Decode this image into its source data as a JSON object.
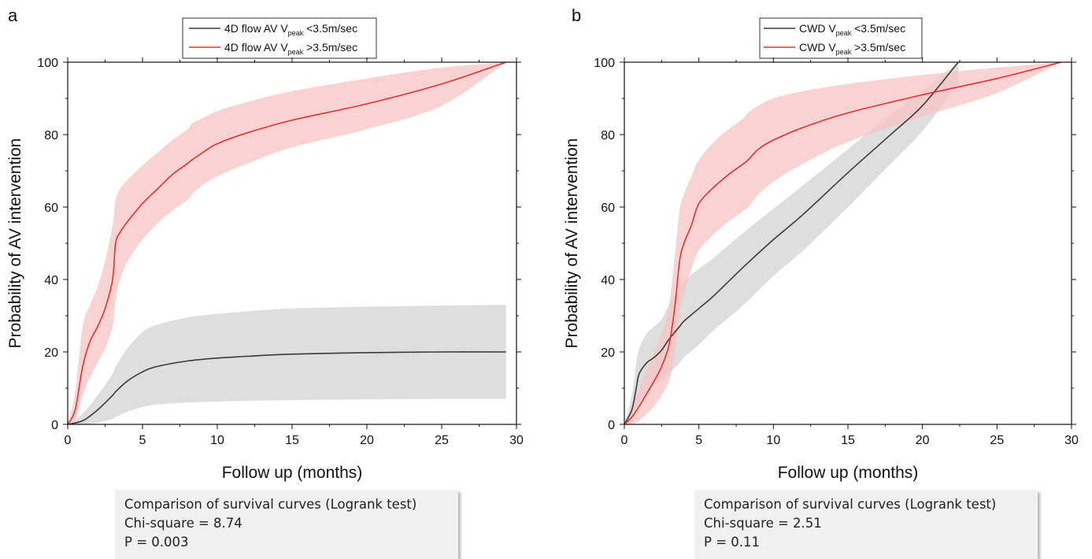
{
  "charts": [
    {
      "panel_label": "a",
      "legend": [
        {
          "prefix": "4D flow AV V",
          "sub": "peak",
          "suffix": " <3.5m/sec",
          "color": "#3a3a3a"
        },
        {
          "prefix": "4D flow AV V",
          "sub": "peak",
          "suffix": " >3.5m/sec",
          "color": "#e8302e"
        }
      ],
      "stats": {
        "title": "Comparison of survival curves (Logrank test)",
        "chi": "Chi-square = 8.74",
        "p": "P = 0.003"
      }
    },
    {
      "panel_label": "b",
      "legend": [
        {
          "prefix": "CWD V",
          "sub": "peak",
          "suffix": " <3.5m/sec",
          "color": "#3a3a3a"
        },
        {
          "prefix": "CWD V",
          "sub": "peak",
          "suffix": " >3.5m/sec",
          "color": "#e8302e"
        }
      ],
      "stats": {
        "title": "Comparison of survival curves (Logrank test)",
        "chi": "Chi-square = 2.51",
        "p": "P = 0.11"
      }
    }
  ],
  "chart_data": [
    {
      "type": "line",
      "xlabel": "Follow up (months)",
      "ylabel": "Probability of AV intervention",
      "xlim": [
        0,
        30
      ],
      "ylim": [
        0,
        100
      ],
      "xticks": [
        0,
        5,
        10,
        15,
        20,
        25,
        30
      ],
      "yticks": [
        0,
        20,
        40,
        60,
        80,
        100
      ],
      "grid": false,
      "legend_position": "top-center",
      "series": [
        {
          "name": "4D flow AV Vpeak <3.5m/sec",
          "color": "#3a3a3a",
          "band_color": "#d3d3d3",
          "x": [
            0,
            1,
            2,
            3,
            3.2,
            4,
            5,
            6,
            8,
            10,
            12,
            15,
            20,
            25,
            29.3
          ],
          "y": [
            0,
            1,
            4,
            8,
            9,
            12,
            14.5,
            16,
            17.5,
            18.3,
            18.8,
            19.4,
            19.8,
            20,
            20
          ],
          "lower": [
            0,
            0,
            0.5,
            1.5,
            2,
            3.5,
            4.8,
            5.5,
            6,
            6.3,
            6.5,
            6.7,
            6.9,
            7,
            7
          ],
          "upper": [
            0,
            3,
            8,
            14,
            16,
            21,
            25.5,
            27.5,
            29.5,
            30.5,
            31.2,
            32,
            32.5,
            32.8,
            33
          ]
        },
        {
          "name": "4D flow AV Vpeak >3.5m/sec",
          "color": "#e8302e",
          "band_color": "#f7c4c3",
          "x": [
            0,
            0.5,
            1,
            1.5,
            2,
            2.5,
            3,
            3.2,
            3.5,
            4,
            5,
            6,
            7,
            8,
            8.3,
            9,
            10,
            12,
            15,
            20,
            25,
            29.3
          ],
          "y": [
            0,
            4,
            16,
            23,
            27,
            32,
            40,
            50,
            53,
            56,
            61,
            65,
            69,
            72,
            73,
            75,
            77.5,
            80.5,
            84,
            88.5,
            94,
            100
          ],
          "lower": [
            0,
            1,
            8,
            13,
            17,
            21,
            27,
            34,
            40,
            45,
            51,
            55.5,
            59,
            62,
            63.5,
            66,
            68.5,
            72,
            76.5,
            81.5,
            88,
            100
          ],
          "upper": [
            0,
            9,
            27,
            33,
            38,
            45,
            55,
            62,
            65,
            67.5,
            71.5,
            75,
            78.5,
            81.5,
            83,
            84.5,
            86.5,
            89,
            92,
            95.5,
            98.5,
            100
          ]
        }
      ]
    },
    {
      "type": "line",
      "xlabel": "Follow up (months)",
      "ylabel": "Probability of AV intervention",
      "xlim": [
        0,
        30
      ],
      "ylim": [
        0,
        100
      ],
      "xticks": [
        0,
        5,
        10,
        15,
        20,
        25,
        30
      ],
      "yticks": [
        0,
        20,
        40,
        60,
        80,
        100
      ],
      "grid": false,
      "legend_position": "top-center",
      "series": [
        {
          "name": "CWD Vpeak <3.5m/sec",
          "color": "#3a3a3a",
          "band_color": "#d3d3d3",
          "x": [
            0,
            0.5,
            0.8,
            1,
            1.5,
            2,
            2.5,
            3,
            3.7,
            4,
            5,
            6,
            8,
            10,
            12,
            15,
            18,
            20,
            22.4
          ],
          "y": [
            0,
            4,
            10,
            14,
            17,
            18.5,
            20.5,
            23.5,
            27,
            28.5,
            32,
            35.5,
            43.5,
            51,
            58,
            69.5,
            80.5,
            88,
            100
          ],
          "lower": [
            0,
            0.5,
            3,
            6,
            8.5,
            10.5,
            12,
            14,
            17,
            18.5,
            22,
            26,
            33,
            41,
            48,
            60,
            72.5,
            81,
            94
          ],
          "upper": [
            0,
            8,
            17,
            21,
            25,
            27,
            29,
            33,
            38,
            39.5,
            43,
            46,
            53,
            59.5,
            66,
            76,
            86,
            92,
            100
          ]
        },
        {
          "name": "CWD Vpeak >3.5m/sec",
          "color": "#e8302e",
          "band_color": "#f7c4c3",
          "x": [
            0,
            0.5,
            1,
            1.5,
            2,
            2.5,
            3,
            3.4,
            3.7,
            4,
            4.5,
            5,
            6,
            7,
            8,
            8.3,
            9,
            10,
            12,
            15,
            20,
            25,
            29.3
          ],
          "y": [
            0,
            2,
            5,
            8.5,
            12,
            16,
            22,
            33,
            45,
            50,
            55,
            61,
            65.5,
            69,
            72,
            73,
            76,
            78.5,
            82,
            86,
            91,
            95.5,
            100
          ],
          "lower": [
            0,
            0,
            1,
            3,
            5,
            8,
            12,
            20,
            30,
            36,
            43,
            48,
            52.5,
            56,
            59,
            60,
            63.5,
            67,
            72,
            78,
            85,
            91.5,
            100
          ],
          "upper": [
            0,
            5,
            10,
            15,
            20,
            25,
            33,
            47,
            59,
            63.5,
            68.5,
            73,
            78,
            81.5,
            84.5,
            86,
            88,
            90,
            92,
            94,
            96.5,
            98.5,
            100
          ]
        }
      ]
    }
  ]
}
